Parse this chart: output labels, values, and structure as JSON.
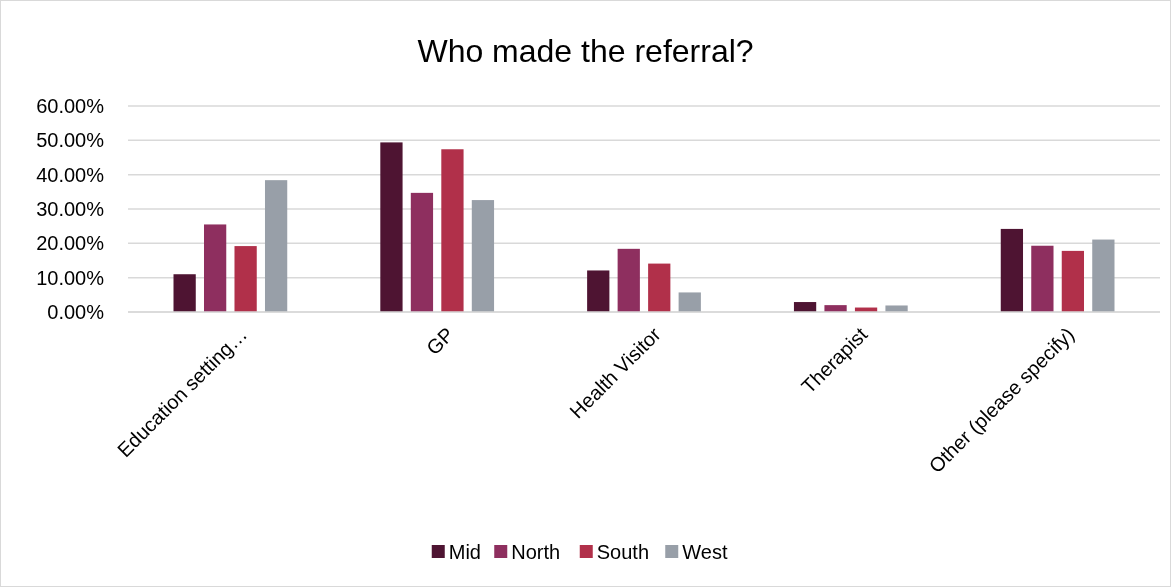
{
  "chart_data": {
    "type": "bar",
    "title": "Who made the referral?",
    "categories": [
      "Education setting…",
      "GP",
      "Health Visitor",
      "Therapist",
      "Other (please specify)"
    ],
    "series": [
      {
        "name": "Mid",
        "color": "#4e1432",
        "values": [
          11.0,
          49.4,
          12.1,
          2.9,
          24.2
        ]
      },
      {
        "name": "North",
        "color": "#8e2f5f",
        "values": [
          25.5,
          34.7,
          18.4,
          2.0,
          19.3
        ]
      },
      {
        "name": "South",
        "color": "#b1304a",
        "values": [
          19.2,
          47.4,
          14.1,
          1.3,
          17.8
        ]
      },
      {
        "name": "West",
        "color": "#989fa8",
        "values": [
          38.4,
          32.6,
          5.7,
          1.9,
          21.1
        ]
      }
    ],
    "ylim": [
      0,
      60
    ],
    "yticks": [
      {
        "value": 0,
        "label": "0.00%"
      },
      {
        "value": 10,
        "label": "10.00%"
      },
      {
        "value": 20,
        "label": "20.00%"
      },
      {
        "value": 30,
        "label": "30.00%"
      },
      {
        "value": 40,
        "label": "40.00%"
      },
      {
        "value": 50,
        "label": "50.00%"
      },
      {
        "value": 60,
        "label": "60.00%"
      }
    ],
    "grid": "y",
    "legend": "bottom"
  }
}
